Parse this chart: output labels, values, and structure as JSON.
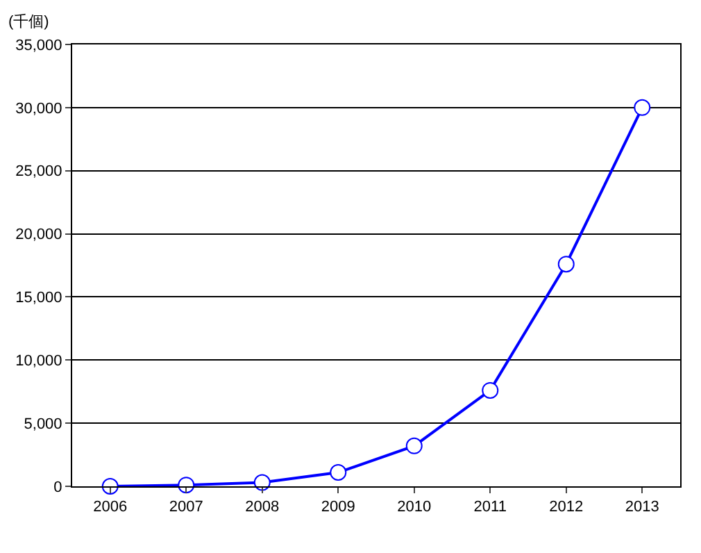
{
  "chart_data": {
    "type": "line",
    "ylabel": "(千個)",
    "categories": [
      "2006",
      "2007",
      "2008",
      "2009",
      "2010",
      "2011",
      "2012",
      "2013"
    ],
    "series": [
      {
        "color": "#0000ff",
        "values": [
          0,
          100,
          300,
          1100,
          3200,
          7600,
          17600,
          30000
        ]
      }
    ],
    "ylim": [
      0,
      35000
    ],
    "yticks": [
      {
        "value": 0,
        "label": "0"
      },
      {
        "value": 5000,
        "label": "5,000"
      },
      {
        "value": 10000,
        "label": "10,000"
      },
      {
        "value": 15000,
        "label": "15,000"
      },
      {
        "value": 20000,
        "label": "20,000"
      },
      {
        "value": 25000,
        "label": "25,000"
      },
      {
        "value": 30000,
        "label": "30,000"
      },
      {
        "value": 35000,
        "label": "35,000"
      }
    ],
    "grid": "y",
    "legend": false,
    "marker": "circle",
    "line_style": "solid"
  }
}
